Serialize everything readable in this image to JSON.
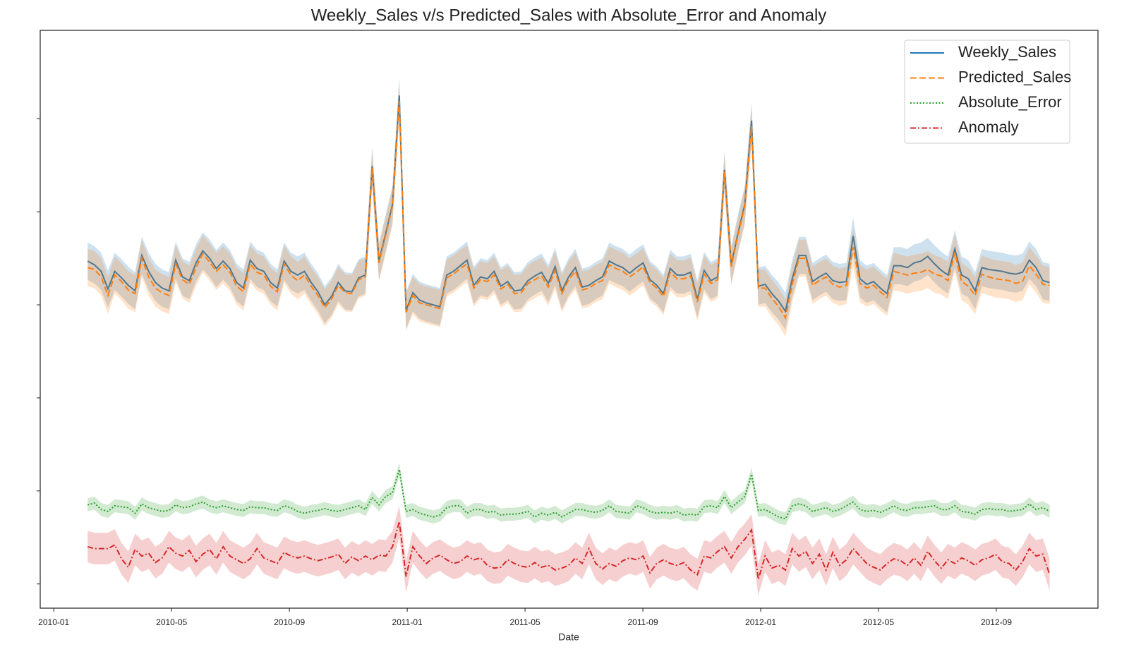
{
  "chart_data": {
    "type": "line",
    "title": "Weekly_Sales v/s Predicted_Sales with Absolute_Error and Anomaly",
    "xlabel": "Date",
    "xlim": [
      -0.46,
      35.45
    ],
    "xticks": [
      {
        "value": 0,
        "label": "2010-01"
      },
      {
        "value": 4,
        "label": "2010-05"
      },
      {
        "value": 8,
        "label": "2010-09"
      },
      {
        "value": 12,
        "label": "2011-01"
      },
      {
        "value": 16,
        "label": "2011-05"
      },
      {
        "value": 20,
        "label": "2011-09"
      },
      {
        "value": 24,
        "label": "2012-01"
      },
      {
        "value": 28,
        "label": "2012-05"
      },
      {
        "value": 32,
        "label": "2012-09"
      }
    ],
    "ylim": [
      -0.26,
      5.95
    ],
    "yticks": [
      0,
      1,
      2,
      3,
      4,
      5
    ],
    "legend": "upper right",
    "x": [
      1.15,
      1.38,
      1.61,
      1.84,
      2.07,
      2.3,
      2.53,
      2.76,
      2.99,
      3.22,
      3.45,
      3.68,
      3.91,
      4.14,
      4.37,
      4.6,
      4.83,
      5.06,
      5.29,
      5.52,
      5.75,
      5.98,
      6.21,
      6.44,
      6.67,
      6.9,
      7.13,
      7.36,
      7.59,
      7.82,
      8.05,
      8.28,
      8.51,
      8.74,
      8.97,
      9.2,
      9.43,
      9.66,
      9.89,
      10.12,
      10.35,
      10.58,
      10.81,
      11.04,
      11.27,
      11.5,
      11.73,
      11.96,
      12.19,
      12.42,
      12.65,
      12.88,
      13.11,
      13.34,
      13.57,
      13.8,
      14.03,
      14.26,
      14.49,
      14.72,
      14.95,
      15.18,
      15.41,
      15.64,
      15.87,
      16.1,
      16.33,
      16.56,
      16.79,
      17.02,
      17.25,
      17.48,
      17.71,
      17.94,
      18.17,
      18.4,
      18.63,
      18.86,
      19.09,
      19.32,
      19.55,
      19.78,
      20.01,
      20.24,
      20.47,
      20.7,
      20.93,
      21.16,
      21.39,
      21.62,
      21.85,
      22.08,
      22.31,
      22.54,
      22.77,
      23.0,
      23.23,
      23.46,
      23.69,
      23.92,
      24.15,
      24.38,
      24.61,
      24.84,
      25.07,
      25.3,
      25.53,
      25.76,
      25.99,
      26.22,
      26.45,
      26.68,
      26.91,
      27.14,
      27.37,
      27.6,
      27.83,
      28.06,
      28.29,
      28.52,
      28.75,
      28.98,
      29.21,
      29.44,
      29.67,
      29.9,
      30.13,
      30.36,
      30.59,
      30.82,
      31.05,
      31.28,
      31.51,
      31.74,
      31.97,
      32.2,
      32.43,
      32.66,
      32.89,
      33.12,
      33.35,
      33.58,
      33.81
    ],
    "series": [
      {
        "name": "Weekly_Sales",
        "color": "#1f77b4",
        "linestyle": "solid",
        "band": 0.2,
        "values": [
          3.47,
          3.43,
          3.36,
          3.17,
          3.36,
          3.29,
          3.21,
          3.15,
          3.53,
          3.36,
          3.24,
          3.18,
          3.15,
          3.48,
          3.3,
          3.26,
          3.45,
          3.58,
          3.5,
          3.39,
          3.47,
          3.39,
          3.24,
          3.18,
          3.48,
          3.39,
          3.36,
          3.24,
          3.18,
          3.47,
          3.36,
          3.32,
          3.36,
          3.24,
          3.14,
          3.0,
          3.09,
          3.24,
          3.15,
          3.14,
          3.29,
          3.32,
          4.49,
          3.47,
          3.77,
          4.08,
          5.25,
          2.94,
          3.13,
          3.05,
          3.02,
          3.0,
          2.98,
          3.32,
          3.36,
          3.42,
          3.48,
          3.21,
          3.3,
          3.28,
          3.36,
          3.2,
          3.25,
          3.15,
          3.16,
          3.26,
          3.31,
          3.35,
          3.23,
          3.41,
          3.15,
          3.3,
          3.4,
          3.19,
          3.21,
          3.26,
          3.3,
          3.47,
          3.43,
          3.4,
          3.34,
          3.4,
          3.45,
          3.27,
          3.21,
          3.12,
          3.39,
          3.32,
          3.32,
          3.35,
          3.06,
          3.37,
          3.26,
          3.3,
          4.45,
          3.43,
          3.77,
          4.08,
          4.98,
          3.2,
          3.22,
          3.12,
          3.04,
          2.93,
          3.28,
          3.53,
          3.53,
          3.25,
          3.3,
          3.34,
          3.26,
          3.24,
          3.25,
          3.74,
          3.28,
          3.22,
          3.25,
          3.18,
          3.12,
          3.42,
          3.42,
          3.4,
          3.45,
          3.47,
          3.52,
          3.44,
          3.37,
          3.32,
          3.6,
          3.32,
          3.28,
          3.15,
          3.4,
          3.38,
          3.37,
          3.36,
          3.34,
          3.33,
          3.35,
          3.48,
          3.4,
          3.26,
          3.24
        ]
      },
      {
        "name": "Predicted_Sales",
        "color": "#ff7f0e",
        "linestyle": "dashed",
        "band": 0.2,
        "values": [
          3.4,
          3.38,
          3.3,
          3.1,
          3.32,
          3.25,
          3.16,
          3.12,
          3.5,
          3.3,
          3.18,
          3.13,
          3.1,
          3.44,
          3.27,
          3.22,
          3.4,
          3.55,
          3.46,
          3.36,
          3.43,
          3.35,
          3.2,
          3.14,
          3.44,
          3.35,
          3.32,
          3.2,
          3.14,
          3.44,
          3.32,
          3.26,
          3.32,
          3.2,
          3.1,
          2.97,
          3.06,
          3.21,
          3.13,
          3.12,
          3.27,
          3.3,
          4.47,
          3.45,
          3.75,
          4.06,
          5.19,
          2.92,
          3.1,
          3.02,
          3.0,
          2.98,
          2.96,
          3.29,
          3.33,
          3.39,
          3.44,
          3.18,
          3.27,
          3.25,
          3.32,
          3.17,
          3.22,
          3.12,
          3.13,
          3.23,
          3.27,
          3.31,
          3.19,
          3.37,
          3.12,
          3.27,
          3.36,
          3.16,
          3.18,
          3.23,
          3.26,
          3.43,
          3.39,
          3.36,
          3.3,
          3.35,
          3.41,
          3.24,
          3.18,
          3.09,
          3.35,
          3.28,
          3.28,
          3.31,
          3.03,
          3.33,
          3.23,
          3.27,
          4.43,
          3.41,
          3.75,
          4.06,
          4.92,
          3.18,
          3.18,
          3.07,
          2.98,
          2.86,
          3.22,
          3.5,
          3.5,
          3.21,
          3.26,
          3.3,
          3.22,
          3.19,
          3.21,
          3.62,
          3.23,
          3.18,
          3.21,
          3.14,
          3.08,
          3.36,
          3.34,
          3.32,
          3.34,
          3.35,
          3.38,
          3.33,
          3.31,
          3.26,
          3.56,
          3.25,
          3.2,
          3.1,
          3.33,
          3.3,
          3.28,
          3.27,
          3.26,
          3.23,
          3.25,
          3.42,
          3.33,
          3.22,
          3.21
        ]
      },
      {
        "name": "Absolute_Error",
        "color": "#2ca02c",
        "linestyle": "dotted",
        "band": 0.07,
        "values": [
          0.85,
          0.87,
          0.8,
          0.78,
          0.84,
          0.83,
          0.82,
          0.76,
          0.86,
          0.82,
          0.8,
          0.78,
          0.79,
          0.85,
          0.82,
          0.83,
          0.86,
          0.88,
          0.84,
          0.82,
          0.84,
          0.82,
          0.8,
          0.79,
          0.83,
          0.82,
          0.82,
          0.8,
          0.79,
          0.84,
          0.82,
          0.78,
          0.76,
          0.78,
          0.79,
          0.81,
          0.79,
          0.78,
          0.8,
          0.82,
          0.84,
          0.8,
          0.93,
          0.85,
          0.94,
          0.98,
          1.23,
          0.78,
          0.8,
          0.76,
          0.74,
          0.72,
          0.74,
          0.82,
          0.84,
          0.84,
          0.76,
          0.8,
          0.8,
          0.77,
          0.78,
          0.74,
          0.75,
          0.75,
          0.76,
          0.78,
          0.72,
          0.76,
          0.74,
          0.77,
          0.72,
          0.76,
          0.8,
          0.8,
          0.78,
          0.77,
          0.79,
          0.84,
          0.78,
          0.77,
          0.76,
          0.84,
          0.82,
          0.78,
          0.76,
          0.77,
          0.76,
          0.78,
          0.74,
          0.75,
          0.74,
          0.83,
          0.84,
          0.82,
          0.94,
          0.82,
          0.88,
          0.94,
          1.18,
          0.79,
          0.8,
          0.76,
          0.72,
          0.7,
          0.84,
          0.86,
          0.84,
          0.78,
          0.8,
          0.82,
          0.78,
          0.8,
          0.84,
          0.88,
          0.8,
          0.78,
          0.79,
          0.77,
          0.8,
          0.84,
          0.8,
          0.79,
          0.82,
          0.82,
          0.83,
          0.84,
          0.8,
          0.8,
          0.84,
          0.78,
          0.77,
          0.75,
          0.8,
          0.81,
          0.8,
          0.8,
          0.78,
          0.79,
          0.8,
          0.86,
          0.8,
          0.82,
          0.78
        ]
      },
      {
        "name": "Anomaly",
        "color": "#d62728",
        "linestyle": "dashdot",
        "band": 0.17,
        "values": [
          0.4,
          0.38,
          0.38,
          0.38,
          0.42,
          0.27,
          0.18,
          0.37,
          0.3,
          0.33,
          0.23,
          0.28,
          0.4,
          0.33,
          0.3,
          0.36,
          0.24,
          0.32,
          0.37,
          0.27,
          0.4,
          0.3,
          0.26,
          0.22,
          0.27,
          0.38,
          0.28,
          0.25,
          0.22,
          0.34,
          0.3,
          0.28,
          0.3,
          0.27,
          0.25,
          0.27,
          0.29,
          0.32,
          0.22,
          0.29,
          0.25,
          0.3,
          0.26,
          0.31,
          0.3,
          0.4,
          0.67,
          0.08,
          0.4,
          0.3,
          0.22,
          0.28,
          0.31,
          0.26,
          0.22,
          0.24,
          0.3,
          0.26,
          0.28,
          0.2,
          0.17,
          0.18,
          0.26,
          0.22,
          0.19,
          0.18,
          0.23,
          0.18,
          0.2,
          0.15,
          0.17,
          0.2,
          0.28,
          0.22,
          0.38,
          0.22,
          0.16,
          0.22,
          0.19,
          0.25,
          0.28,
          0.26,
          0.3,
          0.12,
          0.22,
          0.26,
          0.22,
          0.2,
          0.23,
          0.15,
          0.1,
          0.3,
          0.28,
          0.35,
          0.4,
          0.28,
          0.4,
          0.48,
          0.58,
          0.05,
          0.3,
          0.17,
          0.2,
          0.15,
          0.38,
          0.3,
          0.35,
          0.22,
          0.32,
          0.15,
          0.34,
          0.2,
          0.26,
          0.38,
          0.3,
          0.22,
          0.18,
          0.15,
          0.22,
          0.27,
          0.25,
          0.2,
          0.28,
          0.2,
          0.35,
          0.25,
          0.17,
          0.26,
          0.22,
          0.28,
          0.25,
          0.2,
          0.26,
          0.28,
          0.32,
          0.24,
          0.22,
          0.15,
          0.24,
          0.38,
          0.3,
          0.32,
          0.1
        ]
      }
    ]
  }
}
